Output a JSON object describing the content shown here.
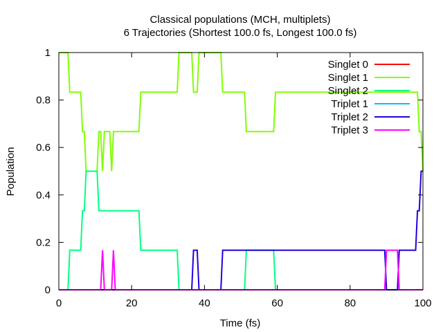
{
  "chart_data": {
    "type": "line",
    "title": "Classical populations (MCH, multiplets)",
    "subtitle": "6 Trajectories (Shortest 100.0 fs, Longest 100.0 fs)",
    "xlabel": "Time (fs)",
    "ylabel": "Population",
    "xlim": [
      0,
      100
    ],
    "ylim": [
      0,
      1
    ],
    "xticks": [
      0,
      20,
      40,
      60,
      80,
      100
    ],
    "yticks": [
      0,
      0.2,
      0.4,
      0.6,
      0.8,
      1
    ],
    "ytick_labels": [
      "0",
      "0.2",
      "0.4",
      "0.6",
      "0.8",
      "1"
    ],
    "grid": false,
    "legend_position": "top-right",
    "series": [
      {
        "name": "Singlet 0",
        "color": "#ff0000",
        "points": [
          [
            0,
            0
          ],
          [
            100,
            0
          ]
        ]
      },
      {
        "name": "Singlet 1",
        "color": "#80ff00",
        "points": [
          [
            0,
            1
          ],
          [
            2.5,
            1
          ],
          [
            3,
            0.833
          ],
          [
            6,
            0.833
          ],
          [
            6.5,
            0.667
          ],
          [
            7,
            0.667
          ],
          [
            7.5,
            0.5
          ],
          [
            10.5,
            0.5
          ],
          [
            11,
            0.667
          ],
          [
            11.5,
            0.667
          ],
          [
            12,
            0.5
          ],
          [
            12.5,
            0.667
          ],
          [
            14,
            0.667
          ],
          [
            14.5,
            0.5
          ],
          [
            15,
            0.667
          ],
          [
            22,
            0.667
          ],
          [
            22.5,
            0.833
          ],
          [
            32.5,
            0.833
          ],
          [
            33,
            1
          ],
          [
            36.5,
            1
          ],
          [
            37,
            0.833
          ],
          [
            38,
            0.833
          ],
          [
            38.5,
            1
          ],
          [
            44.5,
            1
          ],
          [
            45,
            0.833
          ],
          [
            51,
            0.833
          ],
          [
            51.5,
            0.667
          ],
          [
            59,
            0.667
          ],
          [
            59.5,
            0.833
          ],
          [
            98.5,
            0.833
          ],
          [
            99,
            0.667
          ],
          [
            99.5,
            0.667
          ],
          [
            100,
            0.5
          ]
        ]
      },
      {
        "name": "Singlet 2",
        "color": "#00ff80",
        "points": [
          [
            0,
            0
          ],
          [
            2.5,
            0
          ],
          [
            3,
            0.167
          ],
          [
            6,
            0.167
          ],
          [
            6.5,
            0.333
          ],
          [
            7,
            0.333
          ],
          [
            7.5,
            0.5
          ],
          [
            10.5,
            0.5
          ],
          [
            11,
            0.333
          ],
          [
            22,
            0.333
          ],
          [
            22.5,
            0.167
          ],
          [
            32.5,
            0.167
          ],
          [
            33,
            0
          ],
          [
            51,
            0
          ],
          [
            51.5,
            0.167
          ],
          [
            59,
            0.167
          ],
          [
            59.5,
            0
          ],
          [
            100,
            0
          ]
        ]
      },
      {
        "name": "Triplet 1",
        "color": "#00c0ff",
        "points": [
          [
            0,
            0
          ],
          [
            100,
            0
          ]
        ]
      },
      {
        "name": "Triplet 2",
        "color": "#2000e0",
        "points": [
          [
            0,
            0
          ],
          [
            36.5,
            0
          ],
          [
            37,
            0.167
          ],
          [
            38,
            0.167
          ],
          [
            38.5,
            0
          ],
          [
            44.5,
            0
          ],
          [
            45,
            0.167
          ],
          [
            89.5,
            0.167
          ],
          [
            90,
            0
          ],
          [
            93,
            0
          ],
          [
            93.5,
            0.167
          ],
          [
            98,
            0.167
          ],
          [
            98.5,
            0.333
          ],
          [
            99,
            0.333
          ],
          [
            99.5,
            0.5
          ],
          [
            100,
            0.5
          ]
        ]
      },
      {
        "name": "Triplet 3",
        "color": "#ff00ff",
        "points": [
          [
            0,
            0
          ],
          [
            11.5,
            0
          ],
          [
            12,
            0.167
          ],
          [
            12.5,
            0
          ],
          [
            14.5,
            0
          ],
          [
            15,
            0.167
          ],
          [
            15.5,
            0
          ],
          [
            89.5,
            0
          ],
          [
            90,
            0.167
          ],
          [
            93,
            0.167
          ],
          [
            93.5,
            0
          ],
          [
            100,
            0
          ]
        ]
      }
    ]
  }
}
